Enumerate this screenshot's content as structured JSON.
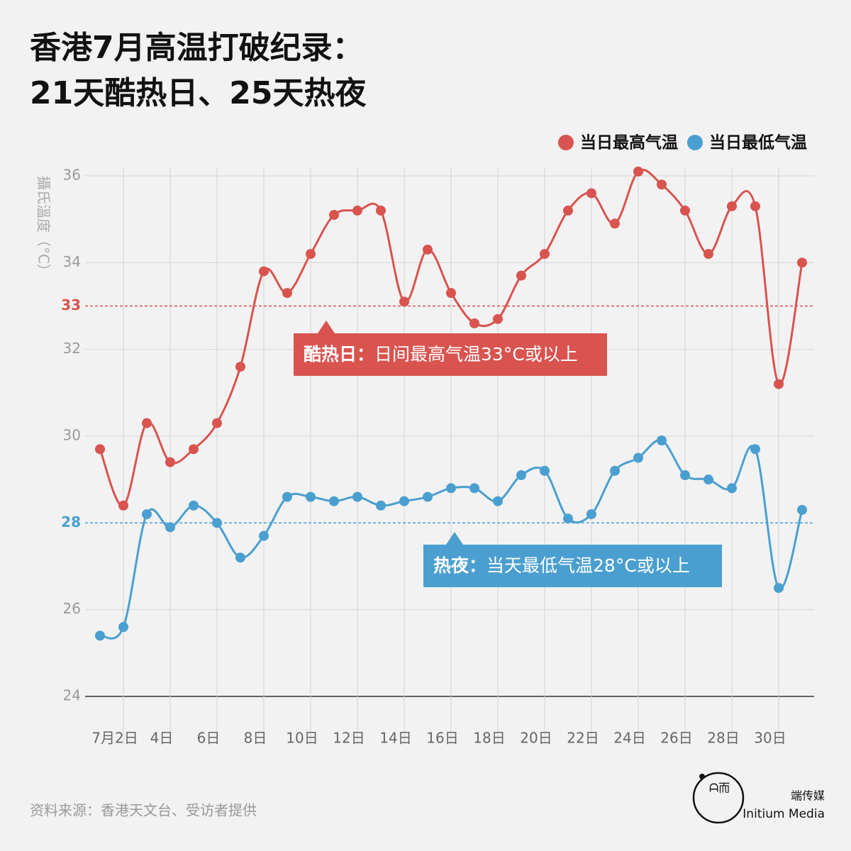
{
  "chart_data": {
    "type": "line",
    "title": [
      "香港7月高温打破纪录：",
      "21天酷热日、25天热夜"
    ],
    "y_label": "攝氏溫度（°C）",
    "x": [
      1,
      2,
      3,
      4,
      5,
      6,
      7,
      8,
      9,
      10,
      11,
      12,
      13,
      14,
      15,
      16,
      17,
      18,
      19,
      20,
      21,
      22,
      23,
      24,
      25,
      26,
      27,
      28,
      29,
      30,
      31
    ],
    "xlim": [
      1,
      31
    ],
    "xticks": [
      {
        "value": 2,
        "label": "7月2日"
      },
      {
        "value": 4,
        "label": "4日"
      },
      {
        "value": 6,
        "label": "6日"
      },
      {
        "value": 8,
        "label": "8日"
      },
      {
        "value": 10,
        "label": "10日"
      },
      {
        "value": 12,
        "label": "12日"
      },
      {
        "value": 14,
        "label": "14日"
      },
      {
        "value": 16,
        "label": "16日"
      },
      {
        "value": 18,
        "label": "18日"
      },
      {
        "value": 20,
        "label": "20日"
      },
      {
        "value": 22,
        "label": "22日"
      },
      {
        "value": 24,
        "label": "24日"
      },
      {
        "value": 26,
        "label": "26日"
      },
      {
        "value": 28,
        "label": "28日"
      },
      {
        "value": 30,
        "label": "30日"
      }
    ],
    "ylim": [
      24,
      36
    ],
    "yticks": [
      24,
      26,
      28,
      30,
      32,
      33,
      34,
      36
    ],
    "grid": true,
    "series": [
      {
        "name": "当日最高气温",
        "color": "#d9534f",
        "values": [
          29.7,
          28.4,
          30.3,
          29.4,
          29.7,
          30.3,
          31.6,
          33.8,
          33.3,
          34.2,
          35.1,
          35.2,
          35.2,
          33.1,
          34.3,
          33.3,
          32.6,
          32.7,
          33.7,
          34.2,
          35.2,
          35.6,
          34.9,
          36.1,
          35.8,
          35.2,
          34.2,
          35.3,
          35.3,
          31.2,
          34.0
        ]
      },
      {
        "name": "当日最低气温",
        "color": "#4a9fd0",
        "values": [
          25.4,
          25.6,
          28.2,
          27.9,
          28.4,
          28.0,
          27.2,
          27.7,
          28.6,
          28.6,
          28.5,
          28.6,
          28.4,
          28.5,
          28.6,
          28.8,
          28.8,
          28.5,
          29.1,
          29.2,
          28.1,
          28.2,
          29.2,
          29.5,
          29.9,
          29.1,
          29.0,
          28.8,
          29.7,
          26.5,
          28.3
        ]
      }
    ],
    "reference_lines": [
      {
        "value": 33,
        "color": "#d9534f",
        "label": "酷热日：",
        "text": "日间最高气温33°C或以上"
      },
      {
        "value": 28,
        "color": "#4a9fd0",
        "label": "热夜：",
        "text": "当天最低气温28°C或以上"
      }
    ],
    "legend": "top-right",
    "source": "资料来源：香港天文台、受访者提供",
    "brand": [
      "端传媒",
      "Initium Media"
    ]
  }
}
